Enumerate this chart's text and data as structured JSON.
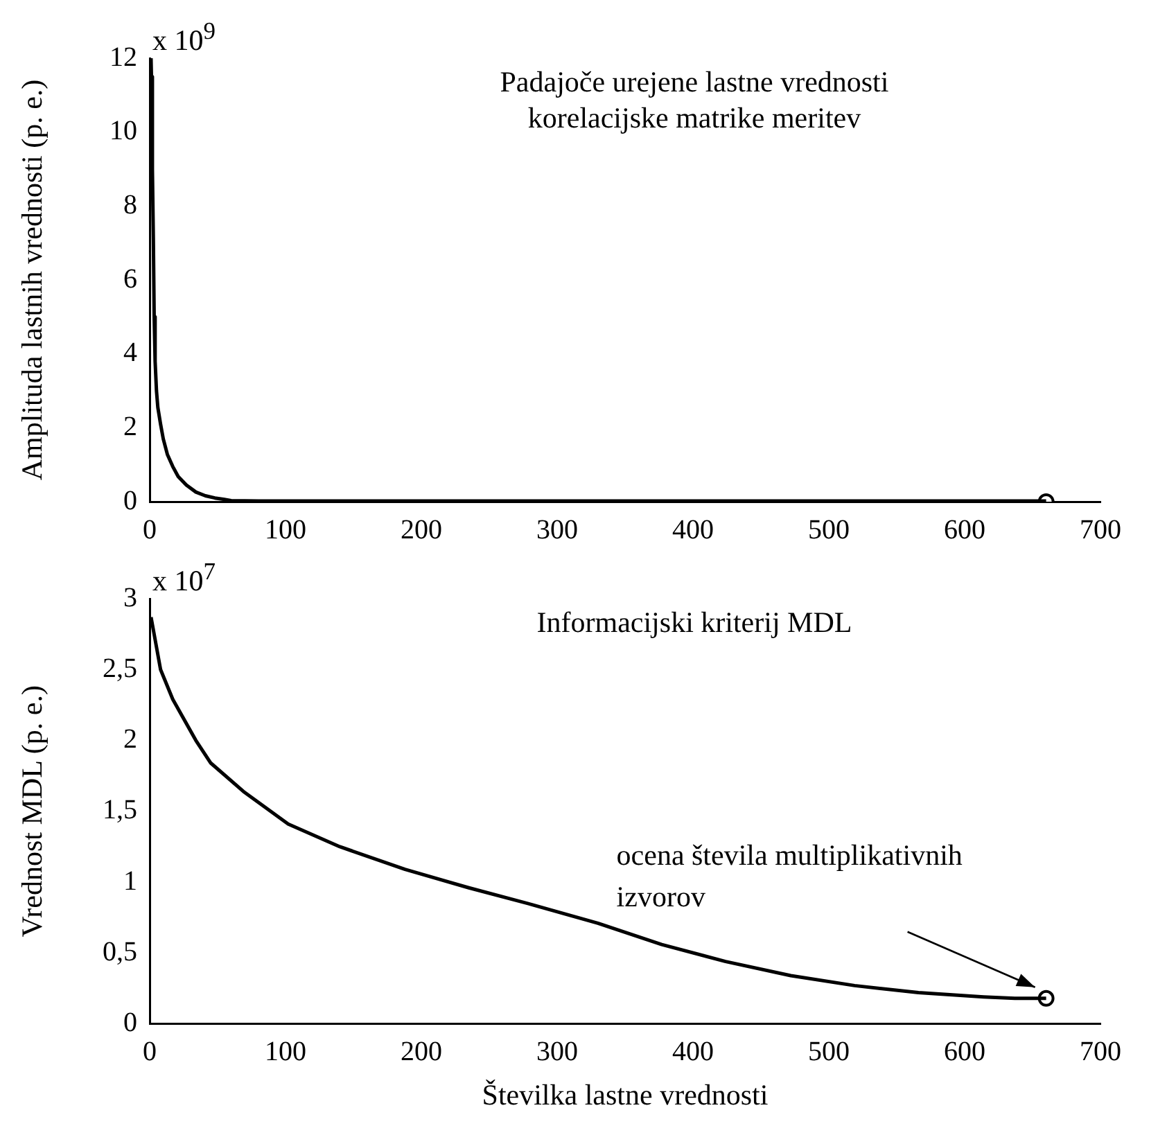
{
  "chart_data": [
    {
      "type": "line",
      "title": "Padajoče urejene lastne vrednosti korelacijske matrike meritev",
      "ylabel": "Amplituda lastnih vrednosti (p. e.)",
      "annotations": [
        "x 10$^{9}$"
      ],
      "xlim": [
        0,
        700
      ],
      "xticks": [
        0,
        100,
        200,
        300,
        400,
        500,
        600,
        700
      ],
      "ylim": [
        0,
        12
      ],
      "yticks": [
        0,
        2,
        4,
        6,
        8,
        10,
        12
      ],
      "grid": false,
      "legend": false,
      "series": [
        {
          "color": "#000000",
          "x": [
            1,
            1.3,
            2,
            2.7,
            3.3,
            4,
            5,
            6,
            8,
            10,
            13,
            17,
            21,
            27,
            34,
            41,
            48,
            55,
            60,
            80,
            150,
            300,
            450,
            600,
            660
          ],
          "values": [
            12,
            11.5,
            9,
            7.1,
            5,
            3.8,
            3,
            2.55,
            2.1,
            1.7,
            1.28,
            0.95,
            0.68,
            0.45,
            0.26,
            0.16,
            0.1,
            0.06,
            0.03,
            0.02,
            0.02,
            0.02,
            0.02,
            0.02,
            0.02
          ],
          "marker": "none"
        },
        {
          "type": "scatter",
          "color": "#000000",
          "x": [
            660
          ],
          "values": [
            0
          ],
          "marker": "circle"
        }
      ]
    },
    {
      "type": "line",
      "title": "Informacijski kriterij MDL",
      "xlabel": "Številka lastne vrednosti",
      "ylabel": "Vrednost MDL (p. e.)",
      "annotations": [
        "x 10$^{7}$",
        "ocena števila multiplikativnih izvorov"
      ],
      "xlim": [
        0,
        700
      ],
      "xticks": [
        0,
        100,
        200,
        300,
        400,
        500,
        600,
        700
      ],
      "ylim": [
        0,
        3
      ],
      "yticks": [
        0,
        {
          "value": 0.5,
          "label": "0,5"
        },
        1,
        {
          "value": 1.5,
          "label": "1,5"
        },
        2,
        {
          "value": 2.5,
          "label": "2,5"
        },
        3
      ],
      "grid": false,
      "legend": false,
      "series": [
        {
          "color": "#000000",
          "x": [
            1,
            8,
            17,
            34,
            45,
            69,
            102,
            140,
            188,
            235,
            282,
            330,
            377,
            424,
            472,
            519,
            566,
            614,
            637,
            660
          ],
          "values": [
            2.87,
            2.5,
            2.29,
            2.0,
            1.84,
            1.64,
            1.41,
            1.25,
            1.09,
            0.96,
            0.84,
            0.71,
            0.56,
            0.44,
            0.34,
            0.27,
            0.22,
            0.19,
            0.18,
            0.18
          ],
          "marker": "none"
        },
        {
          "type": "scatter",
          "color": "#000000",
          "x": [
            660
          ],
          "values": [
            0.18
          ],
          "marker": "circle"
        }
      ]
    }
  ]
}
